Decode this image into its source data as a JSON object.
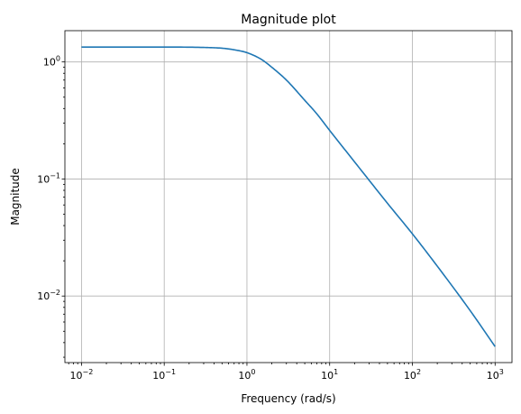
{
  "chart_data": {
    "type": "line",
    "title": "Magnitude plot",
    "xlabel": "Frequency (rad/s)",
    "ylabel": "Magnitude",
    "xscale": "log",
    "yscale": "log",
    "xlim": [
      0.0063,
      1600
    ],
    "ylim": [
      0.0027,
      1.85
    ],
    "grid": true,
    "x_ticks": [
      {
        "value": 0.01,
        "base": "10",
        "exp": "−2"
      },
      {
        "value": 0.1,
        "base": "10",
        "exp": "−1"
      },
      {
        "value": 1,
        "base": "10",
        "exp": "0"
      },
      {
        "value": 10,
        "base": "10",
        "exp": "1"
      },
      {
        "value": 100,
        "base": "10",
        "exp": "2"
      },
      {
        "value": 1000,
        "base": "10",
        "exp": "3"
      }
    ],
    "y_ticks": [
      {
        "value": 0.01,
        "base": "10",
        "exp": "−2"
      },
      {
        "value": 0.1,
        "base": "10",
        "exp": "−1"
      },
      {
        "value": 1,
        "base": "10",
        "exp": "0"
      }
    ],
    "series": [
      {
        "color": "#1f77b4",
        "x": [
          0.01,
          0.1,
          0.3,
          0.5,
          0.7,
          1.0,
          1.5,
          2.0,
          3.0,
          5.0,
          7.0,
          10,
          20,
          50,
          100,
          200,
          500,
          1000
        ],
        "y": [
          1.34,
          1.34,
          1.33,
          1.31,
          1.27,
          1.2,
          1.05,
          0.9,
          0.7,
          0.47,
          0.36,
          0.26,
          0.14,
          0.062,
          0.034,
          0.018,
          0.0075,
          0.0037
        ]
      }
    ]
  }
}
